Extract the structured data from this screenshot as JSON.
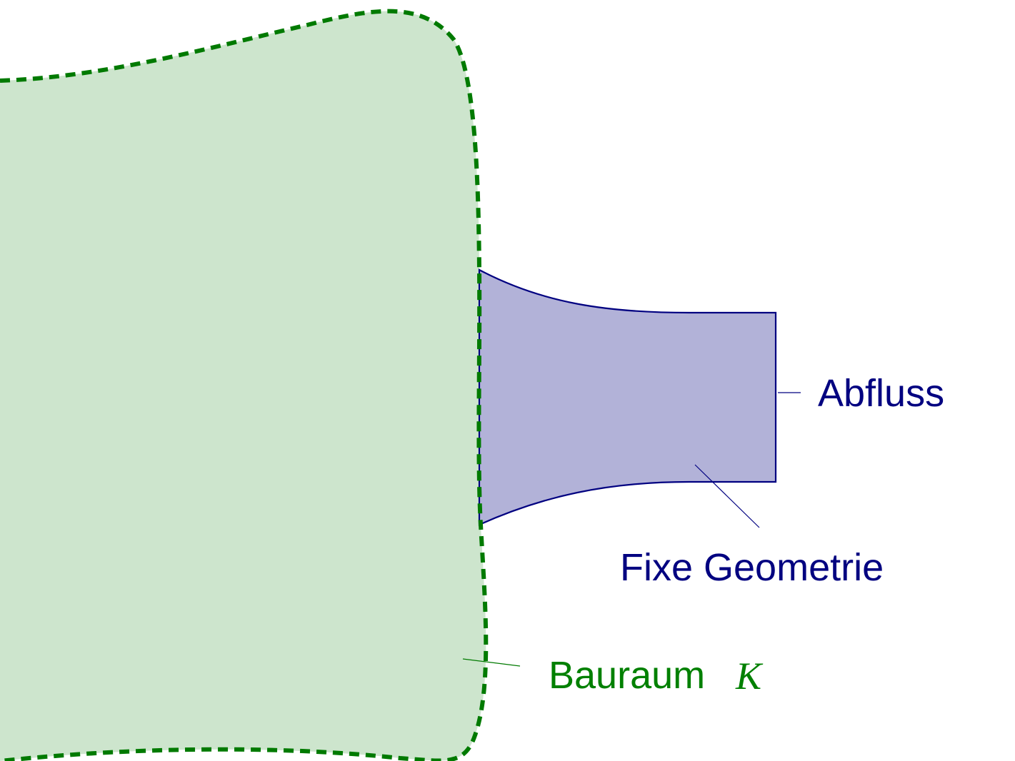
{
  "colors": {
    "bauraum_fill": "#cde5cd",
    "bauraum_stroke": "#007a00",
    "geometry_fill": "#b2b2d8",
    "geometry_stroke": "#000080",
    "label_blue": "#000080",
    "label_green": "#008000"
  },
  "labels": {
    "abfluss": "Abfluss",
    "fixe_geometrie": "Fixe Geometrie",
    "bauraum": "Bauraum",
    "bauraum_symbol": "K"
  }
}
